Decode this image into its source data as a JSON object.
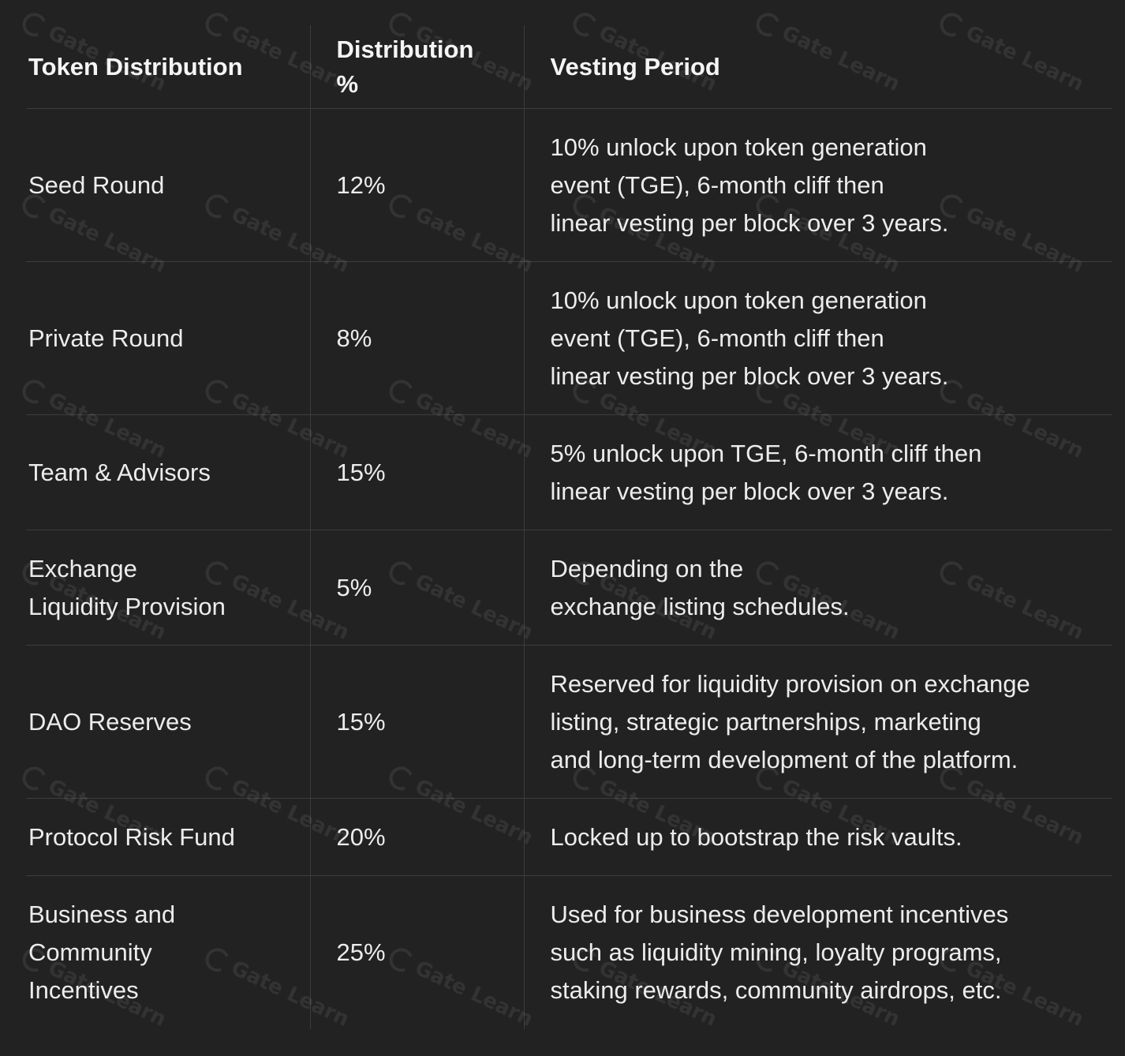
{
  "table": {
    "headers": [
      "Token Distribution",
      "Distribution\n%",
      "Vesting Period"
    ],
    "rows": [
      {
        "name": "Seed Round",
        "pct": "12%",
        "vesting": "10% unlock upon token generation\nevent (TGE), 6-month cliff then\nlinear vesting per block over 3 years."
      },
      {
        "name": "Private Round",
        "pct": "8%",
        "vesting": "10% unlock upon token generation\nevent (TGE), 6-month cliff then\nlinear vesting per block over 3 years."
      },
      {
        "name": "Team & Advisors",
        "pct": "15%",
        "vesting": "5% unlock upon TGE, 6-month cliff then\nlinear vesting per block over 3 years."
      },
      {
        "name": "Exchange\nLiquidity Provision",
        "pct": "5%",
        "vesting": "Depending on the\nexchange listing schedules."
      },
      {
        "name": "DAO Reserves",
        "pct": "15%",
        "vesting": "Reserved for liquidity provision on exchange\nlisting, strategic partnerships, marketing\nand long-term development of the platform."
      },
      {
        "name": "Protocol Risk Fund",
        "pct": "20%",
        "vesting": "Locked up to bootstrap the risk vaults."
      },
      {
        "name": "Business and\nCommunity\nIncentives",
        "pct": "25%",
        "vesting": "Used for business development incentives\nsuch as liquidity mining, loyalty programs,\nstaking rewards, community airdrops, etc."
      }
    ]
  },
  "watermark": {
    "text": "Gate Learn",
    "icon": "gate-logo-icon"
  },
  "colors": {
    "background": "#222222",
    "text": "#f2f2f2",
    "divider": "#3d3d3d"
  }
}
